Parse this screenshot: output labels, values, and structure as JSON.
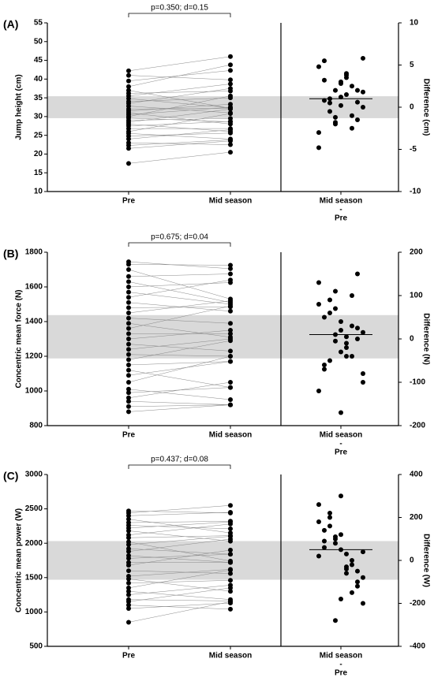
{
  "chart_data": [
    {
      "type": "paired-dot",
      "label": "(A)",
      "annotation": "p=0.350; d=0.15",
      "ylabel": "Jump height (cm)",
      "y2label": "Difference (cm)",
      "categories": [
        "Pre",
        "Mid season"
      ],
      "diff_category": [
        "Mid season",
        "-",
        "Pre"
      ],
      "pre": [
        17.5,
        21.5,
        22.3,
        23.0,
        24.0,
        24.8,
        25.5,
        26.0,
        26.8,
        27.5,
        28.0,
        28.5,
        29.0,
        29.6,
        30.0,
        30.5,
        31.0,
        31.5,
        32.0,
        32.8,
        33.5,
        34.0,
        34.8,
        35.5,
        36.2,
        37.0,
        38.0,
        39.5,
        41.0,
        42.2
      ],
      "mid": [
        20.5,
        23.5,
        23.8,
        22.5,
        26.5,
        25.6,
        24.0,
        30.8,
        26.8,
        28.7,
        26.0,
        32.0,
        29.5,
        28.6,
        35.5,
        32.5,
        28.0,
        33.3,
        32.2,
        31.0,
        37.5,
        35.0,
        32.3,
        38.7,
        36.8,
        32.2,
        43.8,
        42.3,
        39.8,
        46.0
      ],
      "diff": [
        3.0,
        2.0,
        1.5,
        -0.5,
        2.5,
        0.8,
        -1.5,
        4.8,
        0.0,
        1.2,
        -2.0,
        3.5,
        0.5,
        -1.0,
        5.5,
        2.0,
        -3.0,
        1.8,
        0.2,
        -1.8,
        4.0,
        1.0,
        -2.5,
        3.2,
        0.6,
        -4.8,
        5.8,
        2.8,
        -1.2,
        3.8
      ],
      "mean": 1.0,
      "band": [
        -1.3,
        1.3
      ],
      "ylim": [
        10,
        55
      ],
      "yticks": [
        10,
        15,
        20,
        25,
        30,
        35,
        40,
        45,
        50,
        55
      ],
      "y2lim": [
        -10,
        10
      ],
      "y2ticks": [
        -10,
        -5,
        0,
        5,
        10
      ],
      "color": "#000000",
      "band_color": "#d9d9d9"
    },
    {
      "type": "paired-dot",
      "label": "(B)",
      "annotation": "p=0.675; d=0.04",
      "ylabel": "Concentric mean force (N)",
      "y2label": "Difference (N)",
      "categories": [
        "Pre",
        "Mid season"
      ],
      "diff_category": [
        "Mid season",
        "-",
        "Pre"
      ],
      "pre": [
        880,
        910,
        940,
        960,
        990,
        1010,
        1050,
        1090,
        1120,
        1150,
        1180,
        1210,
        1240,
        1270,
        1300,
        1330,
        1360,
        1390,
        1420,
        1450,
        1480,
        1510,
        1540,
        1570,
        1600,
        1630,
        1660,
        1700,
        1730,
        1745
      ],
      "mid": [
        920,
        920,
        920,
        1050,
        1020,
        950,
        1200,
        1170,
        1020,
        1170,
        1290,
        1200,
        1300,
        1230,
        1350,
        1330,
        1490,
        1310,
        1390,
        1520,
        1485,
        1460,
        1640,
        1500,
        1625,
        1510,
        1675,
        1530,
        1725,
        1705
      ],
      "diff": [
        40,
        10,
        -20,
        90,
        30,
        -60,
        150,
        80,
        -100,
        20,
        110,
        -10,
        60,
        -40,
        50,
        0,
        130,
        -80,
        -30,
        70,
        5,
        -50,
        100,
        -70,
        25,
        -120,
        15,
        -170,
        -5,
        -40
      ],
      "mean": 10,
      "band": [
        -45,
        55
      ],
      "ylim": [
        800,
        1800
      ],
      "yticks": [
        800,
        1000,
        1200,
        1400,
        1600,
        1800
      ],
      "y2lim": [
        -200,
        200
      ],
      "y2ticks": [
        -200,
        -100,
        0,
        100,
        200
      ],
      "color": "#000000",
      "band_color": "#d9d9d9"
    },
    {
      "type": "paired-dot",
      "label": "(C)",
      "annotation": "p=0.437; d=0.08",
      "ylabel": "Concentric mean power (W)",
      "y2label": "Difference (W)",
      "categories": [
        "Pre",
        "Mid season"
      ],
      "diff_category": [
        "Mid season",
        "-",
        "Pre"
      ],
      "pre": [
        850,
        1050,
        1100,
        1150,
        1180,
        1250,
        1300,
        1350,
        1420,
        1480,
        1520,
        1600,
        1680,
        1720,
        1780,
        1820,
        1880,
        1920,
        1980,
        2020,
        2080,
        2120,
        2180,
        2220,
        2260,
        2300,
        2350,
        2400,
        2440,
        2470
      ],
      "mid": [
        1150,
        1130,
        1040,
        1350,
        1160,
        1390,
        1180,
        1610,
        1460,
        1300,
        1620,
        1560,
        1900,
        1720,
        1840,
        1720,
        2060,
        1840,
        2100,
        1740,
        2110,
        2280,
        2030,
        2310,
        2210,
        2320,
        2150,
        2450,
        2550,
        2440
      ],
      "diff": [
        300,
        80,
        -60,
        200,
        -20,
        140,
        -120,
        260,
        40,
        -180,
        100,
        -40,
        220,
        0,
        60,
        -100,
        180,
        -80,
        120,
        -280,
        30,
        160,
        -150,
        90,
        -50,
        20,
        -200,
        50,
        110,
        -30
      ],
      "mean": 50,
      "band": [
        -90,
        90
      ],
      "ylim": [
        500,
        3000
      ],
      "yticks": [
        500,
        1000,
        1500,
        2000,
        2500,
        3000
      ],
      "y2lim": [
        -400,
        400
      ],
      "y2ticks": [
        -400,
        -200,
        0,
        200,
        400
      ],
      "color": "#000000",
      "band_color": "#d9d9d9"
    }
  ]
}
